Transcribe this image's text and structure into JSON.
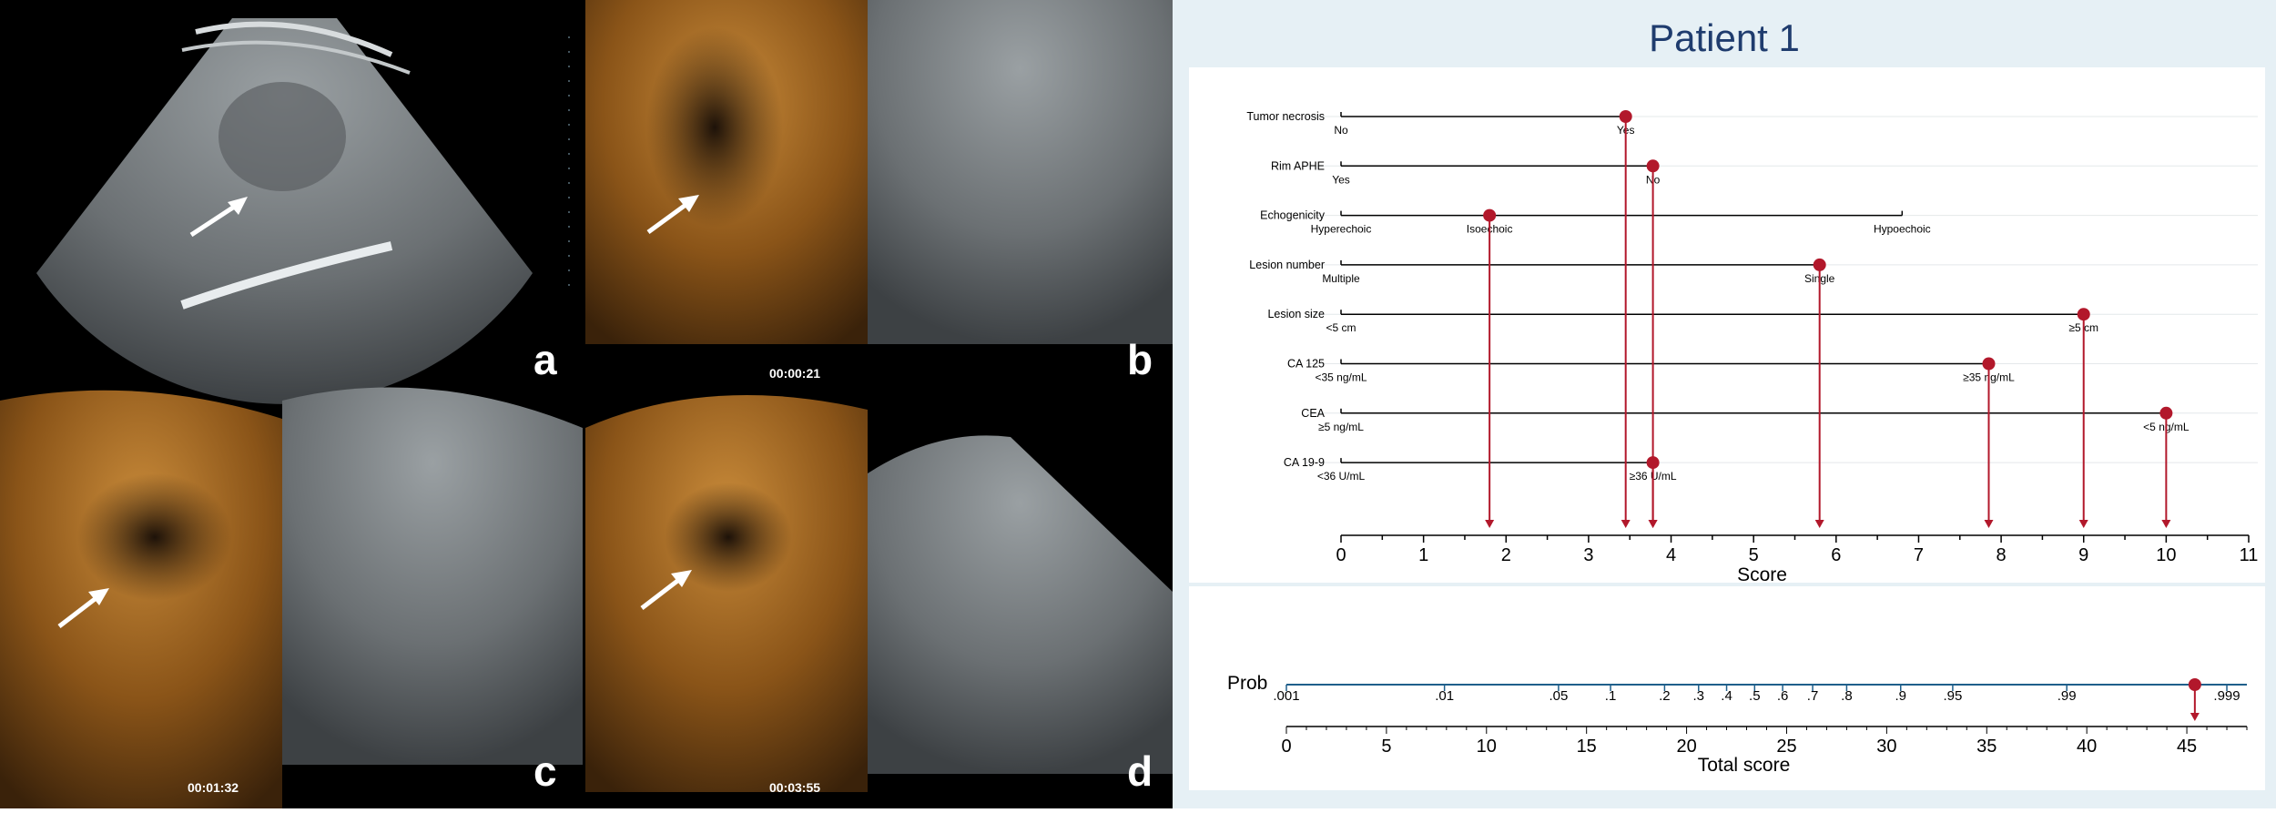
{
  "panels": [
    {
      "letter": "a",
      "timestamp": ""
    },
    {
      "letter": "b",
      "timestamp": "00:00:21"
    },
    {
      "letter": "c",
      "timestamp": "00:01:32"
    },
    {
      "letter": "d",
      "timestamp": "00:03:55"
    }
  ],
  "colors": {
    "title": "#1f3c6e",
    "marker": "#b2182b",
    "background": "#e6f0f5",
    "prob_axis": "#1f5f8b"
  },
  "chart_data": [
    {
      "type": "nomogram",
      "title": "Patient 1",
      "xlabel": "Score",
      "xlim": [
        0,
        11
      ],
      "xticks": [
        0,
        1,
        2,
        3,
        4,
        5,
        6,
        7,
        8,
        9,
        10,
        11
      ],
      "grid": true,
      "variables": [
        {
          "name": "Tumor necrosis",
          "levels": [
            {
              "label": "No",
              "score": 0
            },
            {
              "label": "Yes",
              "score": 3.45
            }
          ],
          "patient_score": 3.45
        },
        {
          "name": "Rim APHE",
          "levels": [
            {
              "label": "Yes",
              "score": 0
            },
            {
              "label": "No",
              "score": 3.78
            }
          ],
          "patient_score": 3.78
        },
        {
          "name": "Echogenicity",
          "levels": [
            {
              "label": "Hyperechoic",
              "score": 0
            },
            {
              "label": "Isoechoic",
              "score": 1.8
            },
            {
              "label": "Hypoechoic",
              "score": 6.8
            }
          ],
          "patient_score": 1.8
        },
        {
          "name": "Lesion number",
          "levels": [
            {
              "label": "Multiple",
              "score": 0
            },
            {
              "label": "Single",
              "score": 5.8
            }
          ],
          "patient_score": 5.8
        },
        {
          "name": "Lesion size",
          "levels": [
            {
              "label": "<5 cm",
              "score": 0
            },
            {
              "label": "≥5 cm",
              "score": 9.0
            }
          ],
          "patient_score": 9.0
        },
        {
          "name": "CA 125",
          "levels": [
            {
              "label": "<35 ng/mL",
              "score": 0
            },
            {
              "label": "≥35 ng/mL",
              "score": 7.85
            }
          ],
          "patient_score": 7.85
        },
        {
          "name": "CEA",
          "levels": [
            {
              "label": "≥5 ng/mL",
              "score": 0
            },
            {
              "label": "<5 ng/mL",
              "score": 10.0
            }
          ],
          "patient_score": 10.0
        },
        {
          "name": "CA 19-9",
          "levels": [
            {
              "label": "<36 U/mL",
              "score": 0
            },
            {
              "label": "≥36 U/mL",
              "score": 3.78
            }
          ],
          "patient_score": 3.78
        }
      ]
    },
    {
      "type": "nomogram_total",
      "xlabel": "Total score",
      "xlim": [
        0,
        48
      ],
      "xticks": [
        0,
        5,
        10,
        15,
        20,
        25,
        30,
        35,
        40,
        45
      ],
      "prob_label": "Prob",
      "prob_ticks": [
        {
          "label": ".001",
          "total": 0
        },
        {
          "label": ".01",
          "total": 7.9
        },
        {
          "label": ".05",
          "total": 13.6
        },
        {
          "label": ".1",
          "total": 16.2
        },
        {
          "label": ".2",
          "total": 18.9
        },
        {
          "label": ".3",
          "total": 20.6
        },
        {
          "label": ".4",
          "total": 22.0
        },
        {
          "label": ".5",
          "total": 23.4
        },
        {
          "label": ".6",
          "total": 24.8
        },
        {
          "label": ".7",
          "total": 26.3
        },
        {
          "label": ".8",
          "total": 28.0
        },
        {
          "label": ".9",
          "total": 30.7
        },
        {
          "label": ".95",
          "total": 33.3
        },
        {
          "label": ".99",
          "total": 39.0
        },
        {
          "label": ".999",
          "total": 47.0
        }
      ],
      "patient_total": 45.4
    }
  ]
}
